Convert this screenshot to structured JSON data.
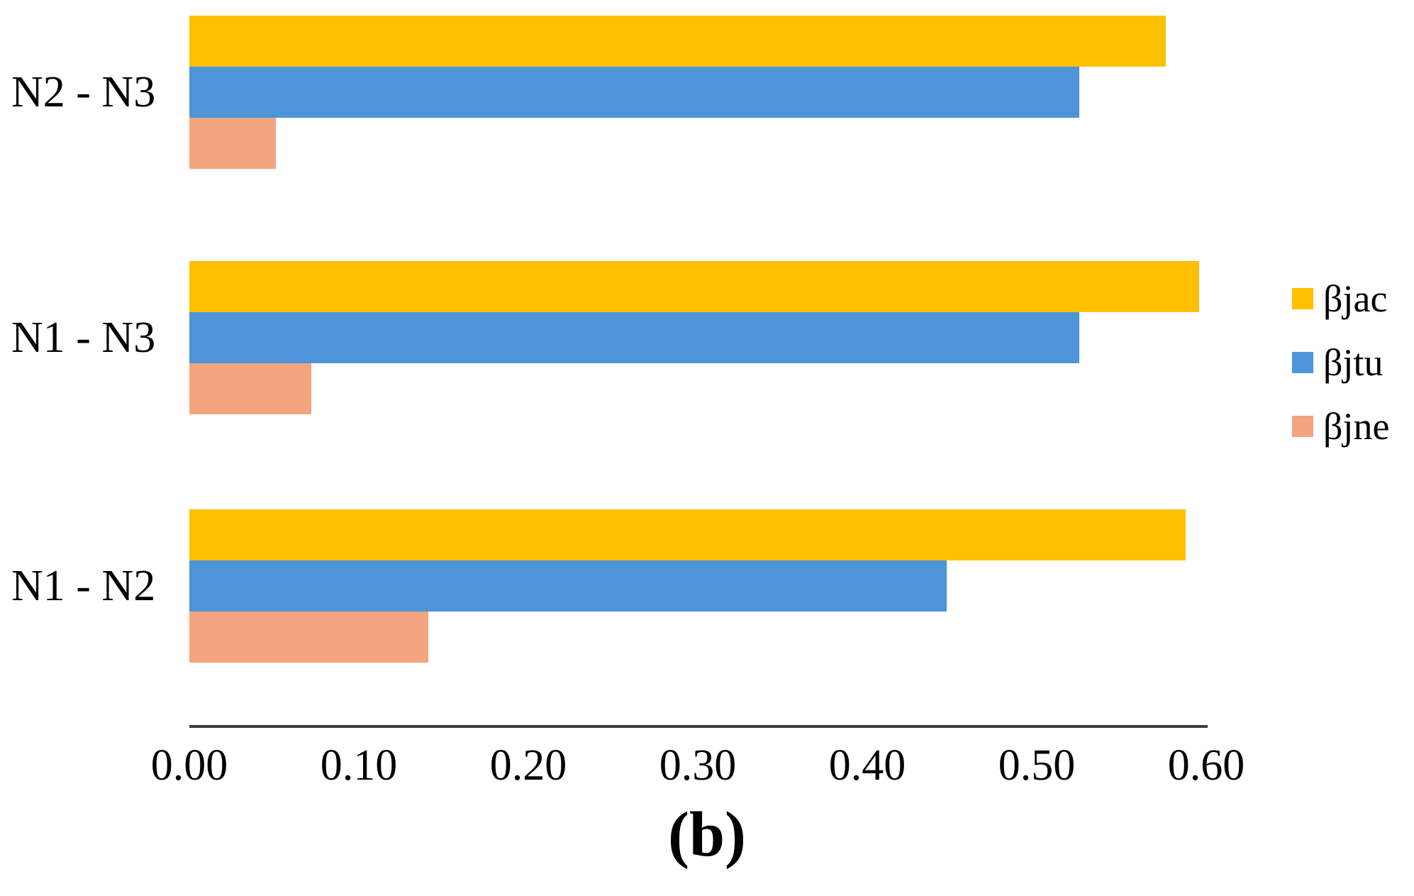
{
  "chart_data": {
    "type": "bar",
    "orientation": "horizontal",
    "categories": [
      "N2 - N3",
      "N1 - N3",
      "N1 - N2"
    ],
    "series": [
      {
        "name": "βjac",
        "color": "#FFC000",
        "values": [
          0.576,
          0.596,
          0.588
        ]
      },
      {
        "name": "βjtu",
        "color": "#4E94D9",
        "values": [
          0.525,
          0.525,
          0.447
        ]
      },
      {
        "name": "βjne",
        "color": "#F2A57E",
        "values": [
          0.051,
          0.072,
          0.141
        ]
      }
    ],
    "xlim": [
      0,
      0.6
    ],
    "x_ticks": [
      "0.00",
      "0.10",
      "0.20",
      "0.30",
      "0.40",
      "0.50",
      "0.60"
    ],
    "x_tick_values": [
      0,
      0.1,
      0.2,
      0.3,
      0.4,
      0.5,
      0.6
    ],
    "grid": false,
    "legend_position": "right",
    "caption": "(b)"
  },
  "colors": {
    "axis_line": "#3a3a3a",
    "text": "#000000"
  }
}
